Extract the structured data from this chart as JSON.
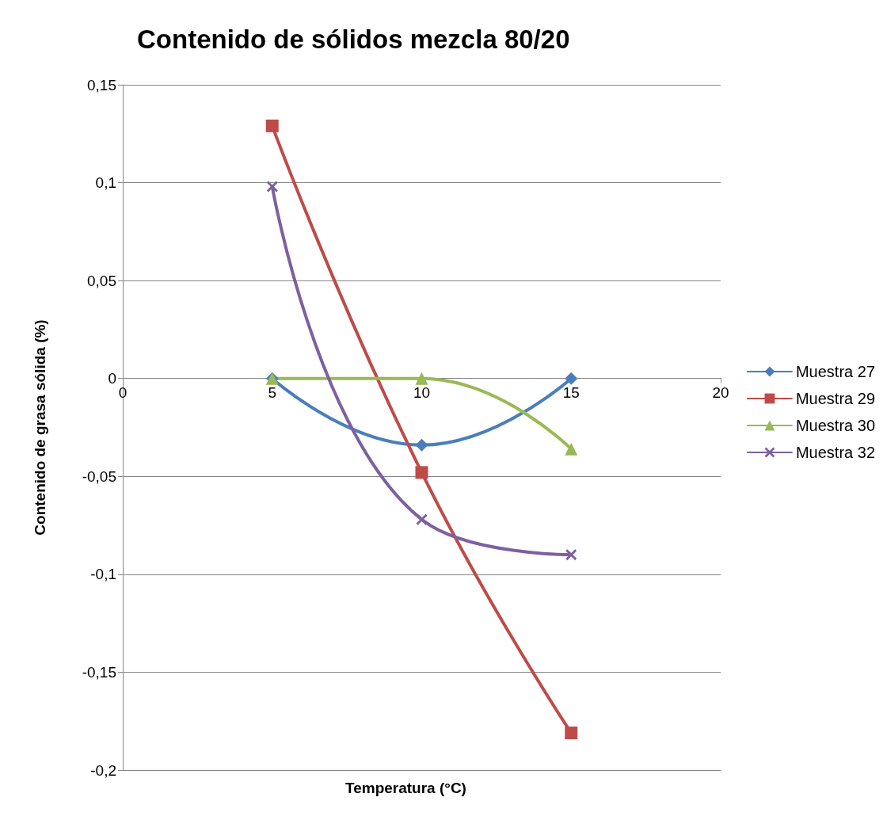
{
  "chart_data": {
    "type": "line",
    "title": "Contenido de sólidos mezcla 80/20",
    "xlabel": "Temperatura (°C)",
    "ylabel": "Contenido de grasa sólida (%)",
    "xlim": [
      0,
      20
    ],
    "xticks": [
      0,
      5,
      10,
      15,
      20
    ],
    "ylim": [
      -0.2,
      0.15
    ],
    "yticks": [
      {
        "value": -0.2,
        "label": "-0,2"
      },
      {
        "value": -0.15,
        "label": "-0,15"
      },
      {
        "value": -0.1,
        "label": "-0,1"
      },
      {
        "value": -0.05,
        "label": "-0,05"
      },
      0,
      {
        "value": 0.05,
        "label": "0,05"
      },
      {
        "value": 0.1,
        "label": "0,1"
      },
      {
        "value": 0.15,
        "label": "0,15"
      }
    ],
    "x": [
      5,
      10,
      15
    ],
    "grid": "y",
    "legend": "right",
    "line_style": "solid",
    "series": [
      {
        "name": "Muestra 27",
        "color": "#4a7ebb",
        "marker": "diamond",
        "values": [
          0,
          -0.034,
          0
        ]
      },
      {
        "name": "Muestra 29",
        "color": "#be4b48",
        "marker": "square",
        "values": [
          0.129,
          -0.048,
          -0.181
        ]
      },
      {
        "name": "Muestra 30",
        "color": "#98b954",
        "marker": "triangle",
        "values": [
          0,
          0,
          -0.036
        ]
      },
      {
        "name": "Muestra 32",
        "color": "#7d60a0",
        "marker": "cross",
        "values": [
          0.098,
          -0.072,
          -0.09
        ]
      }
    ]
  }
}
